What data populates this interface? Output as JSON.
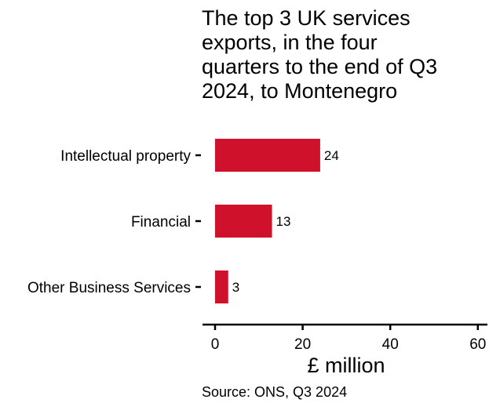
{
  "chart_data": {
    "type": "bar",
    "orientation": "horizontal",
    "title_lines": [
      "The top 3 UK services",
      "exports, in the four",
      "quarters to the end of Q3",
      "2024, to Montenegro"
    ],
    "categories": [
      "Intellectual property",
      "Financial",
      "Other Business Services"
    ],
    "values": [
      24,
      13,
      3
    ],
    "data_labels": [
      "24",
      "13",
      "3"
    ],
    "xlabel": "£ million",
    "ylabel": "",
    "xlim": [
      0,
      62
    ],
    "xticks": [
      0,
      20,
      40,
      60
    ],
    "xtick_labels": [
      "0",
      "20",
      "40",
      "60"
    ],
    "bar_color": "#d0112b",
    "grid": false,
    "legend": "none",
    "source": "Source: ONS, Q3 2024"
  }
}
